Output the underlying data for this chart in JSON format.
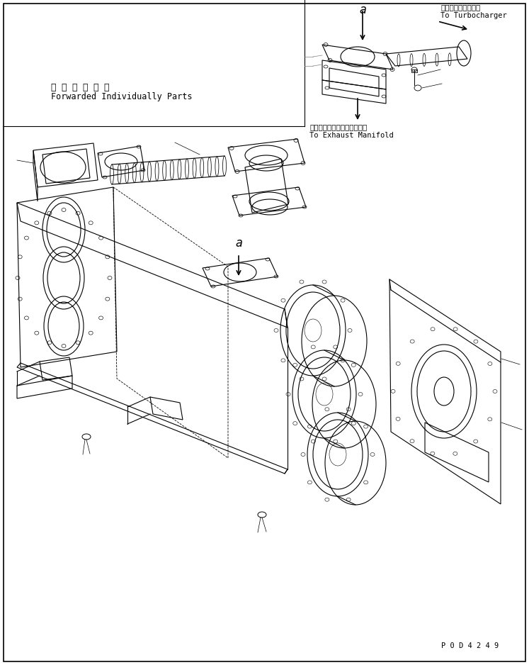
{
  "bg_color": "#ffffff",
  "line_color": "#000000",
  "fig_width": 7.47,
  "fig_height": 9.38,
  "dpi": 100,
  "title_code": "P 0 D 4 2 4 9",
  "label_forwarded_jp": "単 品 発 送 部 品",
  "label_forwarded_en": "Forwarded Individually Parts",
  "label_turbo_jp": "ターボチャージャヘ",
  "label_turbo_en": "To Turbocharger",
  "label_exhaust_jp": "エキゾーストマニホールドヘ",
  "label_exhaust_en": "To Exhaust Manifold",
  "label_a": "a"
}
